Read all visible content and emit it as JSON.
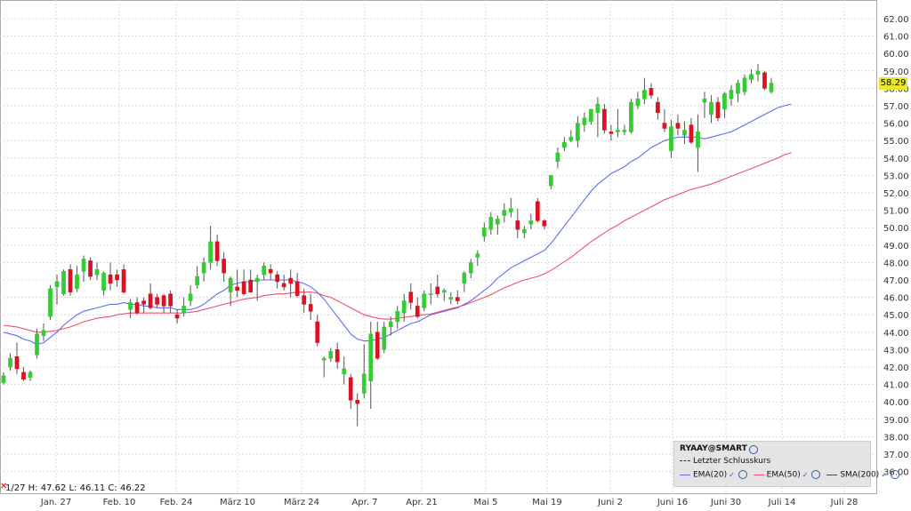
{
  "chart_data": {
    "type": "candlestick",
    "symbol": "RYAAY@SMART",
    "ylim": [
      35.5,
      62.9
    ],
    "y_ticks": [
      "62.00",
      "61.00",
      "60.00",
      "59.00",
      "58.00",
      "57.00",
      "56.00",
      "55.00",
      "54.00",
      "53.00",
      "52.00",
      "51.00",
      "50.00",
      "49.00",
      "48.00",
      "47.00",
      "46.00",
      "45.00",
      "44.00",
      "43.00",
      "42.00",
      "41.00",
      "40.00",
      "39.00",
      "38.00",
      "37.00",
      "36.00"
    ],
    "x_labels": [
      "Jan. 27",
      "Feb. 10",
      "Feb. 24",
      "März 10",
      "März 24",
      "Apr. 7",
      "Apr. 21",
      "Mai 5",
      "Mai 19",
      "Juni 2",
      "Juni 16",
      "Juni 30",
      "Juli 14",
      "Juli 28"
    ],
    "last_price": "58.29",
    "candles": [
      {
        "o": 41.1,
        "h": 41.7,
        "l": 41.0,
        "c": 41.5
      },
      {
        "o": 42.0,
        "h": 42.8,
        "l": 41.8,
        "c": 42.5
      },
      {
        "o": 42.6,
        "h": 43.4,
        "l": 41.6,
        "c": 41.9
      },
      {
        "o": 41.7,
        "h": 42.0,
        "l": 41.2,
        "c": 41.3
      },
      {
        "o": 41.4,
        "h": 41.8,
        "l": 41.2,
        "c": 41.7
      },
      {
        "o": 42.7,
        "h": 44.2,
        "l": 42.5,
        "c": 43.9
      },
      {
        "o": 43.8,
        "h": 44.5,
        "l": 43.5,
        "c": 44.1
      },
      {
        "o": 44.9,
        "h": 46.7,
        "l": 44.7,
        "c": 46.5
      },
      {
        "o": 46.6,
        "h": 47.3,
        "l": 45.6,
        "c": 46.9
      },
      {
        "o": 46.2,
        "h": 47.6,
        "l": 46.1,
        "c": 47.5
      },
      {
        "o": 47.6,
        "h": 47.9,
        "l": 46.1,
        "c": 46.3
      },
      {
        "o": 46.5,
        "h": 47.8,
        "l": 46.3,
        "c": 47.3
      },
      {
        "o": 47.5,
        "h": 48.4,
        "l": 46.9,
        "c": 48.2
      },
      {
        "o": 48.1,
        "h": 48.3,
        "l": 47.0,
        "c": 47.2
      },
      {
        "o": 47.3,
        "h": 48.0,
        "l": 47.0,
        "c": 47.6
      },
      {
        "o": 46.4,
        "h": 47.5,
        "l": 46.1,
        "c": 47.4
      },
      {
        "o": 47.3,
        "h": 48.0,
        "l": 46.4,
        "c": 46.8
      },
      {
        "o": 47.3,
        "h": 47.6,
        "l": 46.6,
        "c": 47.0
      },
      {
        "o": 47.6,
        "h": 47.9,
        "l": 46.2,
        "c": 46.3
      },
      {
        "o": 45.3,
        "h": 45.9,
        "l": 44.8,
        "c": 45.7
      },
      {
        "o": 45.7,
        "h": 46.0,
        "l": 45.0,
        "c": 45.1
      },
      {
        "o": 45.8,
        "h": 46.0,
        "l": 45.1,
        "c": 45.6
      },
      {
        "o": 46.2,
        "h": 46.8,
        "l": 45.3,
        "c": 45.4
      },
      {
        "o": 46.0,
        "h": 46.2,
        "l": 45.4,
        "c": 45.6
      },
      {
        "o": 46.1,
        "h": 46.2,
        "l": 45.1,
        "c": 45.5
      },
      {
        "o": 46.2,
        "h": 46.4,
        "l": 45.1,
        "c": 45.5
      },
      {
        "o": 45.0,
        "h": 45.3,
        "l": 44.5,
        "c": 44.8
      },
      {
        "o": 45.1,
        "h": 46.0,
        "l": 44.9,
        "c": 45.5
      },
      {
        "o": 45.8,
        "h": 46.7,
        "l": 45.5,
        "c": 46.2
      },
      {
        "o": 46.7,
        "h": 47.8,
        "l": 46.5,
        "c": 47.2
      },
      {
        "o": 47.4,
        "h": 48.3,
        "l": 46.9,
        "c": 48.0
      },
      {
        "o": 48.0,
        "h": 50.1,
        "l": 47.6,
        "c": 49.2
      },
      {
        "o": 49.2,
        "h": 49.6,
        "l": 47.8,
        "c": 48.1
      },
      {
        "o": 48.2,
        "h": 48.6,
        "l": 46.9,
        "c": 47.4
      },
      {
        "o": 46.3,
        "h": 47.2,
        "l": 45.5,
        "c": 47.1
      },
      {
        "o": 46.6,
        "h": 47.6,
        "l": 46.0,
        "c": 46.4
      },
      {
        "o": 46.9,
        "h": 47.6,
        "l": 46.1,
        "c": 46.2
      },
      {
        "o": 47.0,
        "h": 47.6,
        "l": 46.4,
        "c": 46.3
      },
      {
        "o": 46.9,
        "h": 47.3,
        "l": 45.8,
        "c": 47.1
      },
      {
        "o": 47.3,
        "h": 48.0,
        "l": 47.0,
        "c": 47.8
      },
      {
        "o": 47.6,
        "h": 47.9,
        "l": 47.0,
        "c": 47.4
      },
      {
        "o": 47.3,
        "h": 47.5,
        "l": 46.5,
        "c": 46.9
      },
      {
        "o": 46.8,
        "h": 47.3,
        "l": 46.4,
        "c": 46.6
      },
      {
        "o": 47.1,
        "h": 47.6,
        "l": 46.0,
        "c": 46.8
      },
      {
        "o": 46.9,
        "h": 47.4,
        "l": 46.0,
        "c": 46.1
      },
      {
        "o": 46.1,
        "h": 46.5,
        "l": 45.1,
        "c": 45.6
      },
      {
        "o": 45.6,
        "h": 46.2,
        "l": 44.7,
        "c": 45.2
      },
      {
        "o": 44.6,
        "h": 45.0,
        "l": 43.2,
        "c": 43.4
      },
      {
        "o": 42.4,
        "h": 42.6,
        "l": 41.4,
        "c": 42.5
      },
      {
        "o": 42.5,
        "h": 43.1,
        "l": 42.3,
        "c": 42.9
      },
      {
        "o": 43.0,
        "h": 43.4,
        "l": 41.9,
        "c": 42.3
      },
      {
        "o": 41.6,
        "h": 42.6,
        "l": 41.0,
        "c": 41.9
      },
      {
        "o": 41.4,
        "h": 41.6,
        "l": 39.6,
        "c": 40.1
      },
      {
        "o": 40.1,
        "h": 40.5,
        "l": 38.6,
        "c": 39.9
      },
      {
        "o": 40.5,
        "h": 43.3,
        "l": 40.2,
        "c": 41.6
      },
      {
        "o": 41.2,
        "h": 44.6,
        "l": 39.6,
        "c": 43.9
      },
      {
        "o": 44.0,
        "h": 44.6,
        "l": 42.4,
        "c": 42.5
      },
      {
        "o": 43.0,
        "h": 44.6,
        "l": 42.8,
        "c": 44.3
      },
      {
        "o": 44.3,
        "h": 44.9,
        "l": 43.8,
        "c": 44.6
      },
      {
        "o": 44.6,
        "h": 45.5,
        "l": 44.2,
        "c": 45.2
      },
      {
        "o": 45.1,
        "h": 46.2,
        "l": 44.6,
        "c": 45.8
      },
      {
        "o": 46.3,
        "h": 46.8,
        "l": 45.3,
        "c": 45.7
      },
      {
        "o": 45.5,
        "h": 46.0,
        "l": 44.8,
        "c": 44.9
      },
      {
        "o": 45.4,
        "h": 46.4,
        "l": 45.2,
        "c": 46.2
      },
      {
        "o": 46.2,
        "h": 46.8,
        "l": 45.6,
        "c": 46.2
      },
      {
        "o": 46.6,
        "h": 47.3,
        "l": 46.0,
        "c": 46.2
      },
      {
        "o": 46.3,
        "h": 46.5,
        "l": 45.8,
        "c": 46.4
      },
      {
        "o": 45.9,
        "h": 46.3,
        "l": 45.6,
        "c": 46.0
      },
      {
        "o": 46.0,
        "h": 46.4,
        "l": 45.6,
        "c": 45.8
      },
      {
        "o": 46.8,
        "h": 47.5,
        "l": 46.3,
        "c": 47.4
      },
      {
        "o": 47.4,
        "h": 48.2,
        "l": 47.1,
        "c": 48.0
      },
      {
        "o": 48.3,
        "h": 48.7,
        "l": 47.8,
        "c": 48.5
      },
      {
        "o": 49.5,
        "h": 50.3,
        "l": 49.2,
        "c": 50.0
      },
      {
        "o": 49.9,
        "h": 50.9,
        "l": 49.6,
        "c": 50.6
      },
      {
        "o": 50.2,
        "h": 50.7,
        "l": 49.6,
        "c": 50.5
      },
      {
        "o": 50.7,
        "h": 51.4,
        "l": 50.3,
        "c": 51.0
      },
      {
        "o": 50.9,
        "h": 51.7,
        "l": 50.6,
        "c": 51.1
      },
      {
        "o": 50.4,
        "h": 51.1,
        "l": 49.4,
        "c": 49.9
      },
      {
        "o": 49.7,
        "h": 50.1,
        "l": 49.4,
        "c": 49.9
      },
      {
        "o": 50.2,
        "h": 50.8,
        "l": 49.9,
        "c": 50.4
      },
      {
        "o": 51.5,
        "h": 51.7,
        "l": 50.3,
        "c": 50.4
      },
      {
        "o": 50.4,
        "h": 50.5,
        "l": 49.9,
        "c": 50.1
      },
      {
        "o": 52.4,
        "h": 53.0,
        "l": 52.2,
        "c": 53.0
      },
      {
        "o": 53.8,
        "h": 54.6,
        "l": 53.4,
        "c": 54.3
      },
      {
        "o": 54.6,
        "h": 55.2,
        "l": 54.4,
        "c": 54.9
      },
      {
        "o": 55.0,
        "h": 55.6,
        "l": 54.9,
        "c": 55.2
      },
      {
        "o": 55.0,
        "h": 56.4,
        "l": 54.6,
        "c": 56.0
      },
      {
        "o": 55.9,
        "h": 56.6,
        "l": 55.5,
        "c": 56.3
      },
      {
        "o": 56.1,
        "h": 56.8,
        "l": 55.9,
        "c": 56.8
      },
      {
        "o": 56.6,
        "h": 57.5,
        "l": 55.2,
        "c": 57.1
      },
      {
        "o": 56.8,
        "h": 57.1,
        "l": 55.4,
        "c": 55.6
      },
      {
        "o": 55.5,
        "h": 55.9,
        "l": 55.0,
        "c": 55.4
      },
      {
        "o": 55.5,
        "h": 56.8,
        "l": 55.2,
        "c": 55.6
      },
      {
        "o": 55.5,
        "h": 55.9,
        "l": 55.3,
        "c": 55.6
      },
      {
        "o": 55.5,
        "h": 57.4,
        "l": 55.4,
        "c": 57.2
      },
      {
        "o": 57.0,
        "h": 57.8,
        "l": 56.8,
        "c": 57.4
      },
      {
        "o": 57.4,
        "h": 58.6,
        "l": 57.1,
        "c": 57.9
      },
      {
        "o": 58.0,
        "h": 58.3,
        "l": 57.4,
        "c": 57.6
      },
      {
        "o": 57.2,
        "h": 57.5,
        "l": 56.2,
        "c": 56.6
      },
      {
        "o": 56.0,
        "h": 56.8,
        "l": 55.5,
        "c": 55.7
      },
      {
        "o": 54.4,
        "h": 56.2,
        "l": 54.0,
        "c": 55.8
      },
      {
        "o": 56.0,
        "h": 56.5,
        "l": 55.3,
        "c": 55.7
      },
      {
        "o": 55.3,
        "h": 56.1,
        "l": 54.8,
        "c": 55.6
      },
      {
        "o": 55.9,
        "h": 56.3,
        "l": 54.8,
        "c": 54.9
      },
      {
        "o": 54.6,
        "h": 56.5,
        "l": 53.2,
        "c": 55.5
      },
      {
        "o": 57.2,
        "h": 57.8,
        "l": 56.3,
        "c": 57.4
      },
      {
        "o": 56.5,
        "h": 57.6,
        "l": 56.0,
        "c": 57.2
      },
      {
        "o": 57.2,
        "h": 57.5,
        "l": 56.1,
        "c": 56.3
      },
      {
        "o": 56.8,
        "h": 57.8,
        "l": 56.3,
        "c": 57.7
      },
      {
        "o": 57.4,
        "h": 58.2,
        "l": 57.0,
        "c": 57.9
      },
      {
        "o": 57.7,
        "h": 58.5,
        "l": 57.2,
        "c": 58.3
      },
      {
        "o": 57.8,
        "h": 58.8,
        "l": 57.6,
        "c": 58.6
      },
      {
        "o": 58.5,
        "h": 59.1,
        "l": 58.3,
        "c": 58.8
      },
      {
        "o": 58.8,
        "h": 59.4,
        "l": 58.4,
        "c": 59.0
      },
      {
        "o": 58.9,
        "h": 59.0,
        "l": 57.9,
        "c": 58.0
      },
      {
        "o": 57.8,
        "h": 58.6,
        "l": 57.7,
        "c": 58.3
      }
    ],
    "series": [
      {
        "name": "EMA(20)",
        "color": "#5b6ff0",
        "values": [
          44.0,
          43.9,
          43.8,
          43.6,
          43.5,
          43.3,
          43.4,
          43.7,
          44.0,
          44.4,
          44.7,
          45.0,
          45.2,
          45.3,
          45.4,
          45.5,
          45.6,
          45.6,
          45.7,
          45.6,
          45.6,
          45.5,
          45.5,
          45.4,
          45.4,
          45.4,
          45.3,
          45.3,
          45.3,
          45.4,
          45.6,
          45.9,
          46.2,
          46.4,
          46.7,
          46.8,
          46.9,
          46.9,
          47.0,
          47.0,
          47.0,
          47.0,
          47.0,
          47.0,
          46.9,
          46.8,
          46.6,
          46.3,
          45.9,
          45.4,
          44.9,
          44.4,
          43.9,
          43.6,
          43.5,
          43.5,
          43.6,
          43.7,
          43.9,
          44.1,
          44.3,
          44.5,
          44.6,
          44.8,
          45.0,
          45.1,
          45.2,
          45.3,
          45.4,
          45.6,
          45.8,
          46.1,
          46.4,
          46.7,
          47.1,
          47.4,
          47.7,
          47.9,
          48.1,
          48.3,
          48.5,
          48.7,
          49.1,
          49.6,
          50.1,
          50.6,
          51.1,
          51.6,
          52.1,
          52.5,
          52.8,
          53.1,
          53.3,
          53.5,
          53.8,
          54.0,
          54.3,
          54.6,
          54.8,
          55.0,
          55.1,
          55.2,
          55.2,
          55.2,
          55.2,
          55.1,
          55.2,
          55.3,
          55.4,
          55.5,
          55.7,
          55.9,
          56.1,
          56.3,
          56.5,
          56.7,
          56.9,
          57.0,
          57.1
        ]
      },
      {
        "name": "EMA(50)",
        "color": "#f0506e",
        "values": [
          44.4,
          44.35,
          44.3,
          44.2,
          44.1,
          44.0,
          44.0,
          44.05,
          44.1,
          44.2,
          44.3,
          44.45,
          44.6,
          44.7,
          44.8,
          44.85,
          44.9,
          45.0,
          45.05,
          45.1,
          45.1,
          45.1,
          45.1,
          45.1,
          45.1,
          45.1,
          45.1,
          45.1,
          45.15,
          45.2,
          45.3,
          45.4,
          45.5,
          45.6,
          45.7,
          45.8,
          45.9,
          45.95,
          46.0,
          46.1,
          46.15,
          46.2,
          46.2,
          46.25,
          46.3,
          46.3,
          46.3,
          46.25,
          46.1,
          46.0,
          45.8,
          45.6,
          45.4,
          45.2,
          45.0,
          44.9,
          44.8,
          44.75,
          44.75,
          44.8,
          44.85,
          44.9,
          44.95,
          45.0,
          45.05,
          45.15,
          45.25,
          45.35,
          45.45,
          45.55,
          45.7,
          45.85,
          46.0,
          46.15,
          46.35,
          46.55,
          46.7,
          46.85,
          47.0,
          47.1,
          47.2,
          47.35,
          47.55,
          47.8,
          48.05,
          48.3,
          48.6,
          48.9,
          49.2,
          49.45,
          49.7,
          49.95,
          50.15,
          50.4,
          50.6,
          50.8,
          51.0,
          51.2,
          51.4,
          51.6,
          51.75,
          51.9,
          52.05,
          52.2,
          52.3,
          52.4,
          52.5,
          52.65,
          52.8,
          52.95,
          53.1,
          53.25,
          53.4,
          53.55,
          53.7,
          53.85,
          54.0,
          54.2,
          54.3
        ]
      }
    ],
    "legend": {
      "title": "RYAAY@SMART",
      "entries": [
        "Letzter Schlusskurs",
        "EMA(20)",
        "EMA(50)",
        "SMA(200)"
      ]
    },
    "info_line": "1/27  H: 47.62  L: 46.11  C: 46.22",
    "grid": true
  },
  "colors": {
    "up": "#33cc33",
    "down": "#dd1122",
    "grid": "#d9d9d9",
    "ema20": "#5b6ff0",
    "ema50": "#f0506e"
  }
}
